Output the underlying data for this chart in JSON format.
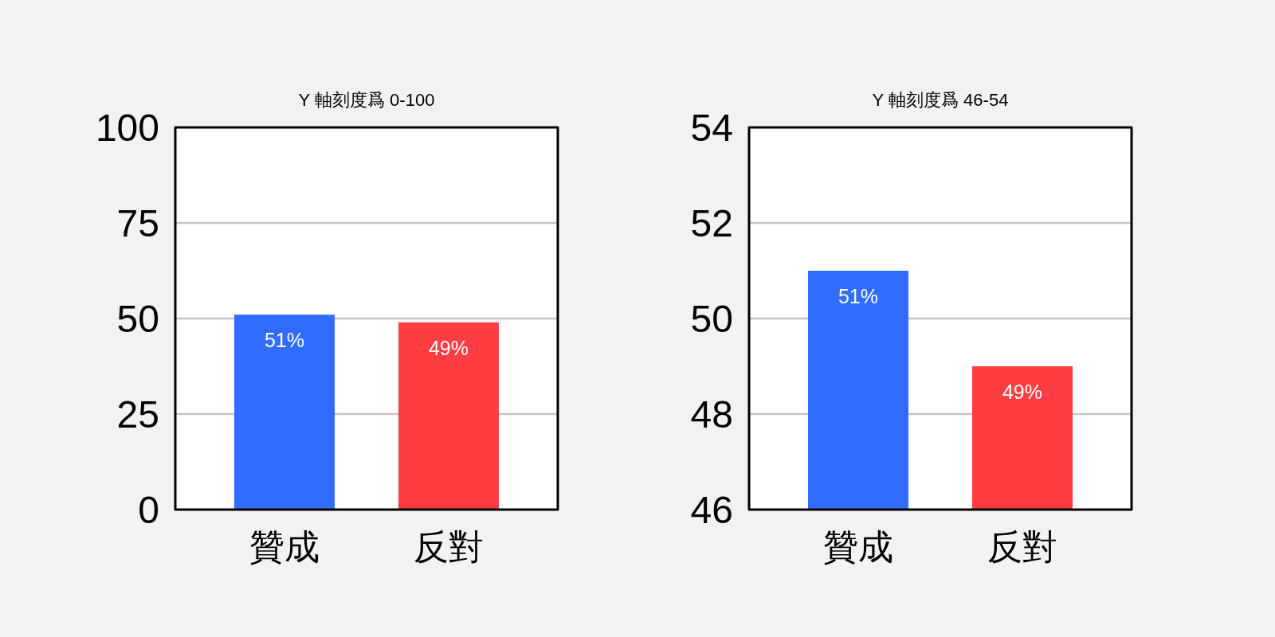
{
  "chart_data": [
    {
      "type": "bar",
      "title": "Y 軸刻度爲 0-100",
      "categories": [
        "贊成",
        "反對"
      ],
      "values": [
        51,
        49
      ],
      "colors": [
        "#306cff",
        "#ff3e44"
      ],
      "value_labels": [
        "51%",
        "49%"
      ],
      "ylim": [
        0,
        100
      ],
      "yticks": [
        0,
        25,
        50,
        75,
        100
      ],
      "grid": "y"
    },
    {
      "type": "bar",
      "title": "Y 軸刻度爲 46-54",
      "categories": [
        "贊成",
        "反對"
      ],
      "values": [
        51,
        49
      ],
      "colors": [
        "#306cff",
        "#ff3e44"
      ],
      "value_labels": [
        "51%",
        "49%"
      ],
      "ylim": [
        46,
        54
      ],
      "yticks": [
        46,
        48,
        50,
        52,
        54
      ],
      "grid": "y"
    }
  ]
}
